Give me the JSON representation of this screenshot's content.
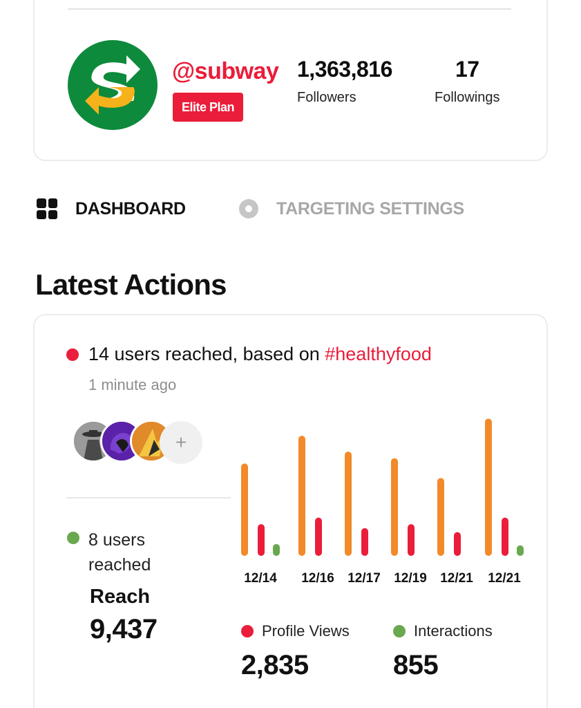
{
  "profile": {
    "handle": "@subway",
    "plan": "Elite Plan",
    "followers_value": "1,363,816",
    "followers_label": "Followers",
    "followings_value": "17",
    "followings_label": "Followings"
  },
  "tabs": [
    {
      "label": "DASHBOARD",
      "icon": "grid-icon",
      "active": true
    },
    {
      "label": "TARGETING SETTINGS",
      "icon": "target-icon",
      "active": false
    }
  ],
  "section_title": "Latest Actions",
  "latest_action": {
    "text": "14 users reached, based on",
    "hashtag": "#healthyfood",
    "time": "1 minute ago",
    "add_symbol": "+"
  },
  "reach": {
    "users_text": "8 users reached",
    "label": "Reach",
    "value": "9,437"
  },
  "legend": {
    "profile_views_label": "Profile Views",
    "profile_views_value": "2,835",
    "interactions_label": "Interactions",
    "interactions_value": "855"
  },
  "colors": {
    "brand_red": "#ea1d3a",
    "orange": "#f28a2a",
    "green": "#6aa84f"
  },
  "chart_data": {
    "type": "bar",
    "categories": [
      "12/14",
      "12/16",
      "12/17",
      "12/19",
      "12/21",
      "12/21"
    ],
    "series": [
      {
        "values": [
          140,
          182,
          158,
          148,
          118,
          208
        ]
      },
      {
        "name": "Profile Views",
        "values": [
          48,
          58,
          42,
          48,
          36,
          58
        ]
      },
      {
        "name": "Interactions",
        "values": [
          18,
          0,
          0,
          0,
          0,
          16
        ]
      }
    ],
    "ylim": [
      0,
      220
    ],
    "grid": false,
    "legend_position": "bottom"
  }
}
